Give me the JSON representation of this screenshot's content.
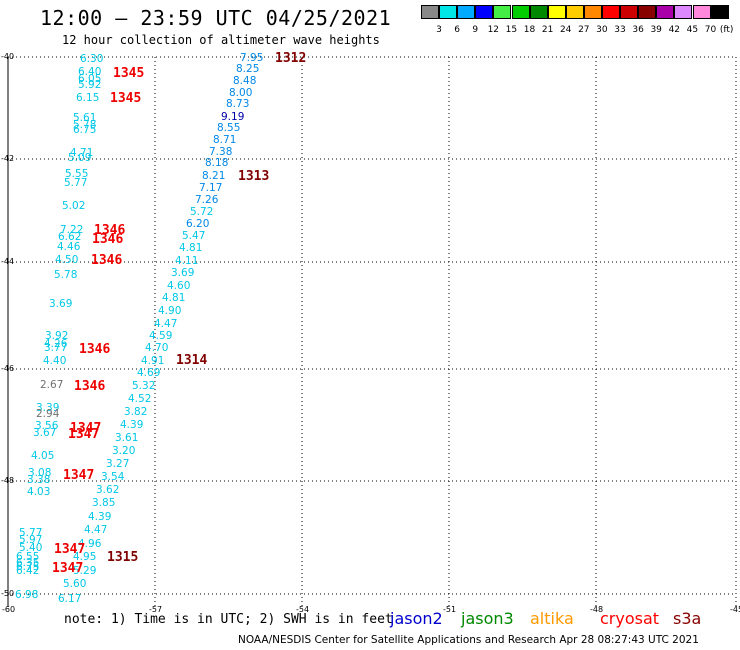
{
  "title": "12:00 – 23:59 UTC 04/25/2021",
  "subtitle": "12 hour collection of altimeter wave heights",
  "colorscale": {
    "unit": "(ft)",
    "bins": [
      {
        "label": "3",
        "color": "#888888"
      },
      {
        "label": "6",
        "color": "#00e6e6"
      },
      {
        "label": "9",
        "color": "#00aaff"
      },
      {
        "label": "12",
        "color": "#0000ff"
      },
      {
        "label": "15",
        "color": "#44ee44"
      },
      {
        "label": "18",
        "color": "#00cc00"
      },
      {
        "label": "21",
        "color": "#008800"
      },
      {
        "label": "24",
        "color": "#ffff00"
      },
      {
        "label": "27",
        "color": "#ffcc00"
      },
      {
        "label": "30",
        "color": "#ff8800"
      },
      {
        "label": "33",
        "color": "#ff0000"
      },
      {
        "label": "36",
        "color": "#cc0000"
      },
      {
        "label": "39",
        "color": "#880000"
      },
      {
        "label": "42",
        "color": "#aa00aa"
      },
      {
        "label": "45",
        "color": "#dd88ff"
      },
      {
        "label": "70",
        "color": "#ff88dd"
      },
      {
        "label": "",
        "color": "#000000"
      }
    ]
  },
  "axes": {
    "lat_labels": [
      "-40",
      "-42",
      "-44",
      "-46",
      "-48",
      "-50"
    ],
    "lon_labels": [
      "-60",
      "-57",
      "-54",
      "-51",
      "-48",
      "-45"
    ]
  },
  "colors": {
    "grey": "#707070",
    "cyan": "#00c8e6",
    "blue": "#0088e6",
    "navy": "#0000aa",
    "red": "#ee0000",
    "darkred": "#800000"
  },
  "wave_labels": [
    {
      "t": "6.30",
      "c": "cyan"
    },
    {
      "t": "6.40",
      "c": "cyan"
    },
    {
      "t": "6.05",
      "c": "cyan"
    },
    {
      "t": "5.92",
      "c": "cyan"
    },
    {
      "t": "6.15",
      "c": "cyan"
    },
    {
      "t": "5.61",
      "c": "cyan"
    },
    {
      "t": "5.78",
      "c": "cyan"
    },
    {
      "t": "6.75",
      "c": "cyan"
    },
    {
      "t": "4.71",
      "c": "cyan"
    },
    {
      "t": "5.09",
      "c": "cyan"
    },
    {
      "t": "5.55",
      "c": "cyan"
    },
    {
      "t": "5.77",
      "c": "cyan"
    },
    {
      "t": "5.02",
      "c": "cyan"
    },
    {
      "t": "7.22",
      "c": "cyan"
    },
    {
      "t": "6.62",
      "c": "cyan"
    },
    {
      "t": "4.46",
      "c": "cyan"
    },
    {
      "t": "4.50",
      "c": "cyan"
    },
    {
      "t": "5.78",
      "c": "cyan"
    },
    {
      "t": "3.69",
      "c": "cyan"
    },
    {
      "t": "3.92",
      "c": "cyan"
    },
    {
      "t": "4.26",
      "c": "cyan"
    },
    {
      "t": "3.77",
      "c": "cyan"
    },
    {
      "t": "4.40",
      "c": "cyan"
    },
    {
      "t": "2.67",
      "c": "grey"
    },
    {
      "t": "3.39",
      "c": "cyan"
    },
    {
      "t": "2.94",
      "c": "grey"
    },
    {
      "t": "3.56",
      "c": "cyan"
    },
    {
      "t": "3.67",
      "c": "cyan"
    },
    {
      "t": "4.05",
      "c": "cyan"
    },
    {
      "t": "3.08",
      "c": "cyan"
    },
    {
      "t": "3.38",
      "c": "cyan"
    },
    {
      "t": "4.03",
      "c": "cyan"
    },
    {
      "t": "5.77",
      "c": "cyan"
    },
    {
      "t": "5.97",
      "c": "cyan"
    },
    {
      "t": "5.40",
      "c": "cyan"
    },
    {
      "t": "6.55",
      "c": "cyan"
    },
    {
      "t": "6.35",
      "c": "cyan"
    },
    {
      "t": "6.75",
      "c": "cyan"
    },
    {
      "t": "6.42",
      "c": "cyan"
    },
    {
      "t": "6.98",
      "c": "cyan"
    },
    {
      "t": "7.95",
      "c": "blue"
    },
    {
      "t": "8.25",
      "c": "blue"
    },
    {
      "t": "8.48",
      "c": "blue"
    },
    {
      "t": "8.00",
      "c": "blue"
    },
    {
      "t": "8.73",
      "c": "blue"
    },
    {
      "t": "9.19",
      "c": "navy"
    },
    {
      "t": "8.55",
      "c": "blue"
    },
    {
      "t": "8.71",
      "c": "blue"
    },
    {
      "t": "7.38",
      "c": "blue"
    },
    {
      "t": "8.18",
      "c": "blue"
    },
    {
      "t": "8.21",
      "c": "blue"
    },
    {
      "t": "7.17",
      "c": "blue"
    },
    {
      "t": "7.26",
      "c": "blue"
    },
    {
      "t": "5.72",
      "c": "cyan"
    },
    {
      "t": "6.20",
      "c": "blue"
    },
    {
      "t": "5.47",
      "c": "cyan"
    },
    {
      "t": "4.81",
      "c": "cyan"
    },
    {
      "t": "4.11",
      "c": "cyan"
    },
    {
      "t": "3.69",
      "c": "cyan"
    },
    {
      "t": "4.60",
      "c": "cyan"
    },
    {
      "t": "4.81",
      "c": "cyan"
    },
    {
      "t": "4.90",
      "c": "cyan"
    },
    {
      "t": "4.47",
      "c": "cyan"
    },
    {
      "t": "4.59",
      "c": "cyan"
    },
    {
      "t": "4.70",
      "c": "cyan"
    },
    {
      "t": "4.91",
      "c": "cyan"
    },
    {
      "t": "4.69",
      "c": "cyan"
    },
    {
      "t": "5.32",
      "c": "cyan"
    },
    {
      "t": "4.52",
      "c": "cyan"
    },
    {
      "t": "3.82",
      "c": "cyan"
    },
    {
      "t": "4.39",
      "c": "cyan"
    },
    {
      "t": "3.61",
      "c": "cyan"
    },
    {
      "t": "3.20",
      "c": "cyan"
    },
    {
      "t": "3.27",
      "c": "cyan"
    },
    {
      "t": "3.54",
      "c": "cyan"
    },
    {
      "t": "3.62",
      "c": "cyan"
    },
    {
      "t": "3.85",
      "c": "cyan"
    },
    {
      "t": "4.39",
      "c": "cyan"
    },
    {
      "t": "4.47",
      "c": "cyan"
    },
    {
      "t": "4.96",
      "c": "cyan"
    },
    {
      "t": "4.95",
      "c": "cyan"
    },
    {
      "t": "5.29",
      "c": "cyan"
    },
    {
      "t": "5.60",
      "c": "cyan"
    },
    {
      "t": "6.17",
      "c": "cyan"
    }
  ],
  "time_labels": [
    {
      "t": "1345",
      "c": "red"
    },
    {
      "t": "1345",
      "c": "red"
    },
    {
      "t": "1346",
      "c": "red"
    },
    {
      "t": "1346",
      "c": "red"
    },
    {
      "t": "1346",
      "c": "red"
    },
    {
      "t": "1346",
      "c": "red"
    },
    {
      "t": "1346",
      "c": "red"
    },
    {
      "t": "1347",
      "c": "red"
    },
    {
      "t": "1347",
      "c": "red"
    },
    {
      "t": "1347",
      "c": "red"
    },
    {
      "t": "1347",
      "c": "red"
    },
    {
      "t": "1347",
      "c": "red"
    },
    {
      "t": "1312",
      "c": "darkred"
    },
    {
      "t": "1313",
      "c": "darkred"
    },
    {
      "t": "1314",
      "c": "darkred"
    },
    {
      "t": "1315",
      "c": "darkred"
    }
  ],
  "note": "note: 1) Time is in UTC; 2) SWH is in feet",
  "satellites": [
    {
      "name": "jason2",
      "color": "#0000cc"
    },
    {
      "name": "jason3",
      "color": "#008800"
    },
    {
      "name": "altika",
      "color": "#ff9900"
    },
    {
      "name": "cryosat",
      "color": "#ff0000"
    },
    {
      "name": "s3a",
      "color": "#880000"
    }
  ],
  "credit": "NOAA/NESDIS Center for Satellite Applications and Research   Apr 28 08:27:43 UTC 2021"
}
